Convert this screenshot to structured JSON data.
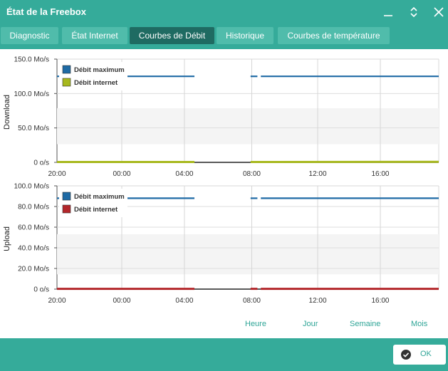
{
  "window": {
    "title": "État de la Freebox"
  },
  "tabs": [
    {
      "label": "Diagnostic"
    },
    {
      "label": "État Internet"
    },
    {
      "label": "Courbes de Débit"
    },
    {
      "label": "Historique"
    },
    {
      "label": "Courbes de température"
    }
  ],
  "active_tab": "Courbes de Débit",
  "range_buttons": [
    "Heure",
    "Jour",
    "Semaine",
    "Mois"
  ],
  "ok_label": "OK",
  "colors": {
    "accent": "#35ab9a",
    "active_tab": "#1f6b62",
    "max_line": "#1e6aa5",
    "download_line": "#a7b81d",
    "upload_line": "#b3262a",
    "band": "#f4f4f4"
  },
  "chart_data": [
    {
      "type": "line",
      "ylabel": "Download",
      "yticks": [
        "0 o/s",
        "50.0 Mo/s",
        "100.0 Mo/s",
        "150.0 Mo/s"
      ],
      "ylim": [
        0,
        150
      ],
      "yunit": "Mo/s",
      "xticks": [
        "20:00",
        "00:00",
        "04:00",
        "08:00",
        "12:00",
        "16:00"
      ],
      "grid": true,
      "legend_position": "top-left",
      "series": [
        {
          "name": "Débit maximum",
          "color": "#1e6aa5",
          "segments": [
            [
              [
                0,
                125
              ],
              [
                0.36,
                125
              ]
            ],
            [
              [
                0.507,
                125
              ],
              [
                0.525,
                125
              ]
            ],
            [
              [
                0.534,
                125
              ],
              [
                1,
                125
              ]
            ]
          ]
        },
        {
          "name": "Débit internet",
          "color": "#a7b81d",
          "segments": [
            [
              [
                0,
                0.5
              ],
              [
                0.36,
                0.5
              ]
            ],
            [
              [
                0.507,
                0.5
              ],
              [
                1,
                0.8
              ]
            ]
          ]
        }
      ]
    },
    {
      "type": "line",
      "ylabel": "Upload",
      "yticks": [
        "0 o/s",
        "20.0 Mo/s",
        "40.0 Mo/s",
        "60.0 Mo/s",
        "80.0 Mo/s",
        "100.0 Mo/s"
      ],
      "ylim": [
        0,
        100
      ],
      "yunit": "Mo/s",
      "xticks": [
        "20:00",
        "00:00",
        "04:00",
        "08:00",
        "12:00",
        "16:00"
      ],
      "grid": true,
      "legend_position": "top-left",
      "series": [
        {
          "name": "Débit maximum",
          "color": "#1e6aa5",
          "segments": [
            [
              [
                0,
                88
              ],
              [
                0.36,
                88
              ]
            ],
            [
              [
                0.507,
                88
              ],
              [
                0.525,
                88
              ]
            ],
            [
              [
                0.534,
                88
              ],
              [
                1,
                88
              ]
            ]
          ]
        },
        {
          "name": "Débit internet",
          "color": "#b3262a",
          "segments": [
            [
              [
                0,
                0.3
              ],
              [
                0.36,
                0.3
              ]
            ],
            [
              [
                0.507,
                0.3
              ],
              [
                0.525,
                0.3
              ]
            ],
            [
              [
                0.534,
                0.3
              ],
              [
                1,
                0.3
              ]
            ]
          ]
        }
      ]
    }
  ]
}
